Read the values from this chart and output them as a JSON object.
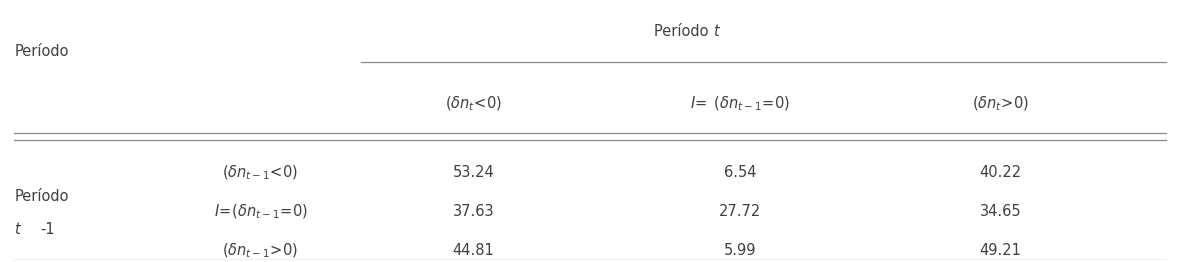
{
  "bg_color": "#ffffff",
  "text_color": "#404040",
  "data": [
    [
      "53.24",
      "6.54",
      "40.22"
    ],
    [
      "37.63",
      "27.72",
      "34.65"
    ],
    [
      "44.81",
      "5.99",
      "49.21"
    ]
  ],
  "font_size": 10.5,
  "line_color": "#888888",
  "line_lw": 0.9
}
